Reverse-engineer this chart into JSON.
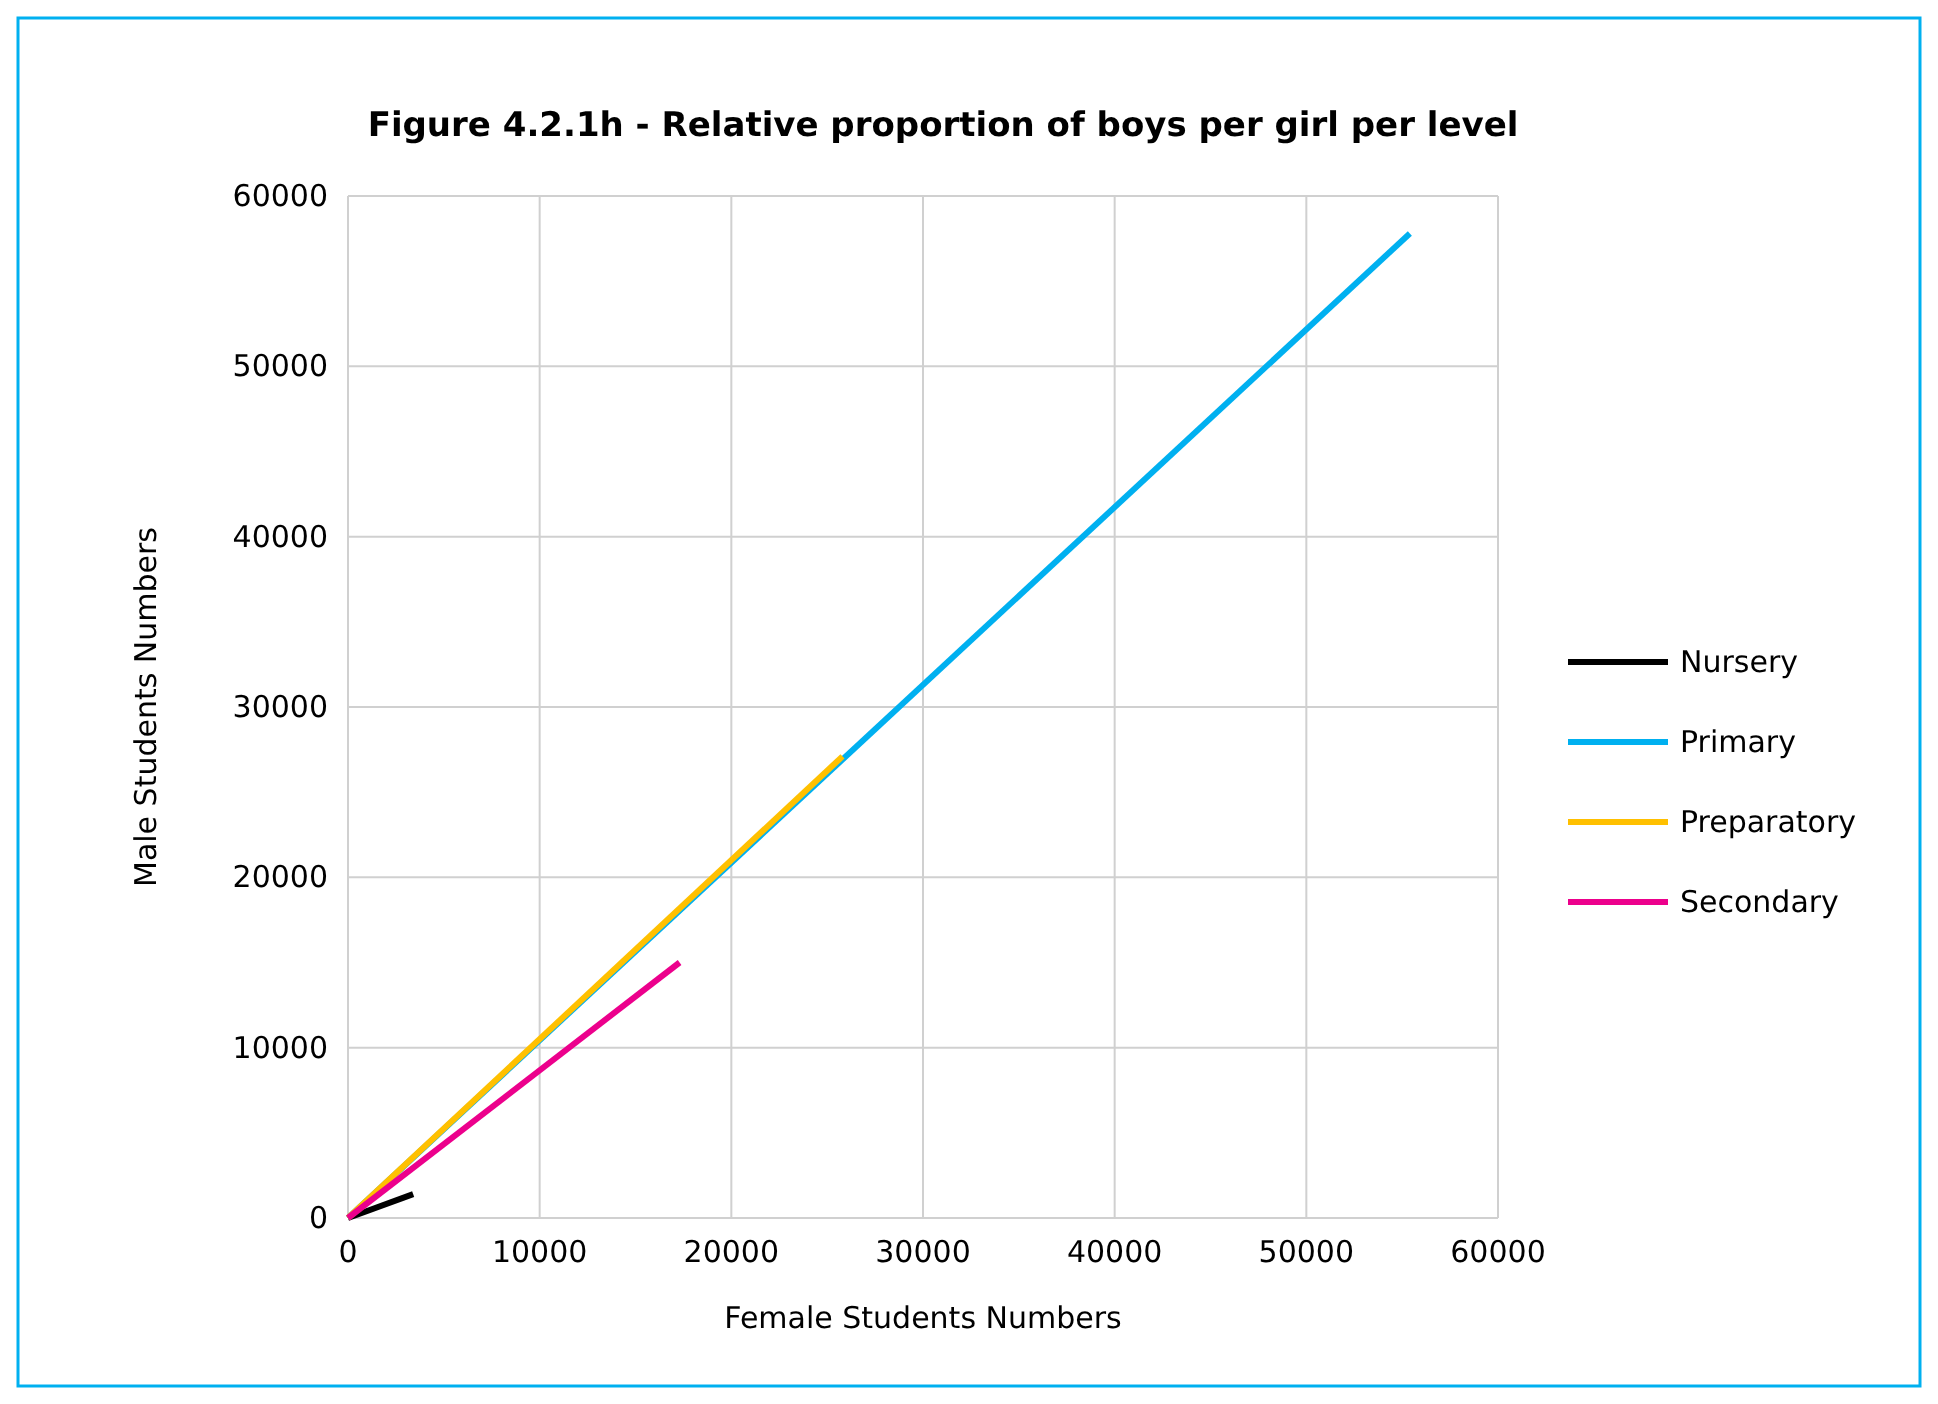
{
  "chart_data": {
    "type": "line",
    "title": "Figure 4.2.1h - Relative proportion of boys per girl per level",
    "xlabel": "Female Students Numbers",
    "ylabel": "Male Students Numbers",
    "xlim": [
      0,
      60000
    ],
    "ylim": [
      0,
      60000
    ],
    "xticks": [
      0,
      10000,
      20000,
      30000,
      40000,
      50000,
      60000
    ],
    "yticks": [
      0,
      10000,
      20000,
      30000,
      40000,
      50000,
      60000
    ],
    "grid": true,
    "legend": "right",
    "marker": "none",
    "series": [
      {
        "name": "Nursery",
        "color": "#000000",
        "x": [
          0,
          3400
        ],
        "values": [
          0,
          1400
        ]
      },
      {
        "name": "Primary",
        "color": "#00b0f0",
        "x": [
          0,
          55400
        ],
        "values": [
          0,
          57800
        ]
      },
      {
        "name": "Preparatory",
        "color": "#ffc000",
        "x": [
          0,
          25800
        ],
        "values": [
          0,
          27100
        ]
      },
      {
        "name": "Secondary",
        "color": "#ec008c",
        "x": [
          0,
          17300
        ],
        "values": [
          0,
          15000
        ]
      }
    ]
  }
}
